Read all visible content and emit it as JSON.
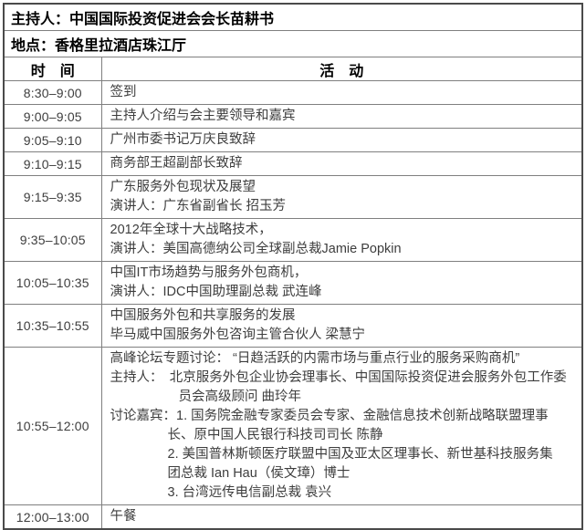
{
  "table": {
    "moderator_line": "主持人：中国国际投资促进会会长苗耕书",
    "venue_line": "地点：香格里拉酒店珠江厅",
    "columns": {
      "time": "时　间",
      "activity": "活　动"
    },
    "colors": {
      "outer_border": "#4a4a4a",
      "inner_border": "#7f7f7f",
      "header_text": "#000000",
      "body_text": "#3d3d3d",
      "background": "#ffffff"
    },
    "rows": [
      {
        "time": "8:30–9:00",
        "lines": [
          {
            "text": "签到",
            "indent": 0
          }
        ]
      },
      {
        "time": "9:00–9:05",
        "lines": [
          {
            "text": "主持人介绍与会主要领导和嘉宾",
            "indent": 0
          }
        ]
      },
      {
        "time": "9:05–9:10",
        "lines": [
          {
            "text": "广州市委书记万庆良致辞",
            "indent": 0
          }
        ]
      },
      {
        "time": "9:10–9:15",
        "lines": [
          {
            "text": "商务部王超副部长致辞",
            "indent": 0
          }
        ]
      },
      {
        "time": "9:15–9:35",
        "lines": [
          {
            "text": "广东服务外包现状及展望",
            "indent": 0
          },
          {
            "text": "演讲人：广东省副省长 招玉芳",
            "indent": 0
          }
        ]
      },
      {
        "time": "9:35–10:05",
        "lines": [
          {
            "text": "2012年全球十大战略技术，",
            "indent": 0
          },
          {
            "text": "演讲人：美国高德纳公司全球副总裁Jamie Popkin",
            "indent": 0
          }
        ]
      },
      {
        "time": "10:05–10:35",
        "lines": [
          {
            "text": "中国IT市场趋势与服务外包商机，",
            "indent": 0
          },
          {
            "text": "演讲人：IDC中国助理副总裁 武连峰",
            "indent": 0
          }
        ]
      },
      {
        "time": "10:35–10:55",
        "lines": [
          {
            "text": "中国服务外包和共享服务的发展",
            "indent": 0
          },
          {
            "text": "毕马威中国服务外包咨询主管合伙人 梁慧宁",
            "indent": 0
          }
        ]
      },
      {
        "time": "10:55–12:00",
        "lines": [
          {
            "text": "高峰论坛专题讨论： “日趋活跃的内需市场与重点行业的服务采购商机”",
            "indent": 0
          },
          {
            "text": "主持人：　北京服务外包企业协会理事长、中国国际投资促进会服务外包工作委",
            "indent": 0
          },
          {
            "text": "员会高级顾问 曲玲年",
            "indent": 75
          },
          {
            "text": "讨论嘉宾：1. 国务院金融专家委员会专家、金融信息技术创新战略联盟理事",
            "indent": 0
          },
          {
            "text": "长、原中国人民银行科技司司长 陈静",
            "indent": 63
          },
          {
            "text": "2. 美国普林斯顿医疗联盟中国及亚太区理事长、新世基科技服务集",
            "indent": 63
          },
          {
            "text": "团总裁 Ian Hau（侯文璋）博士",
            "indent": 63
          },
          {
            "text": "3. 台湾远传电信副总裁 袁兴",
            "indent": 63
          }
        ]
      },
      {
        "time": "12:00–13:00",
        "lines": [
          {
            "text": "午餐",
            "indent": 0
          }
        ]
      }
    ]
  }
}
